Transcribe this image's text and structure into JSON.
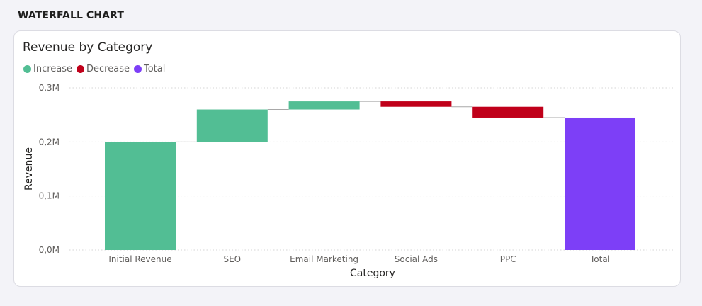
{
  "page": {
    "heading": "WATERFALL CHART"
  },
  "chart_data": {
    "type": "waterfall",
    "title": "Revenue by Category",
    "xlabel": "Category",
    "ylabel": "Revenue",
    "ylim": [
      0,
      300000
    ],
    "yticks": [
      {
        "value": 0,
        "label": "0,0M"
      },
      {
        "value": 100000,
        "label": "0,1M"
      },
      {
        "value": 200000,
        "label": "0,2M"
      },
      {
        "value": 300000,
        "label": "0,3M"
      }
    ],
    "grid": true,
    "legend": [
      {
        "label": "Increase",
        "color": "#52be94"
      },
      {
        "label": "Decrease",
        "color": "#c0001a"
      },
      {
        "label": "Total",
        "color": "#7d3ff7"
      }
    ],
    "categories": [
      "Initial Revenue",
      "SEO",
      "Email Marketing",
      "Social Ads",
      "PPC",
      "Total"
    ],
    "steps": [
      {
        "category": "Initial Revenue",
        "kind": "Increase",
        "start": 0,
        "end": 200000
      },
      {
        "category": "SEO",
        "kind": "Increase",
        "start": 200000,
        "end": 260000
      },
      {
        "category": "Email Marketing",
        "kind": "Increase",
        "start": 260000,
        "end": 275000
      },
      {
        "category": "Social Ads",
        "kind": "Decrease",
        "start": 275000,
        "end": 265000
      },
      {
        "category": "PPC",
        "kind": "Decrease",
        "start": 265000,
        "end": 245000
      },
      {
        "category": "Total",
        "kind": "Total",
        "start": 0,
        "end": 245000
      }
    ]
  }
}
